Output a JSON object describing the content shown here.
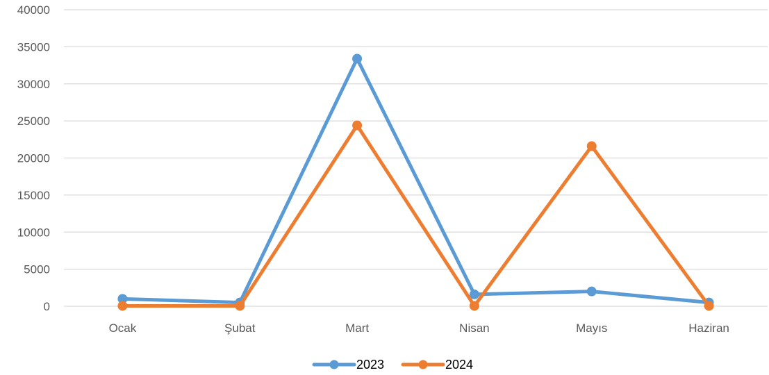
{
  "chart_data": {
    "type": "line",
    "title": "",
    "xlabel": "",
    "ylabel": "",
    "categories": [
      "Ocak",
      "Şubat",
      "Mart",
      "Nisan",
      "Mayıs",
      "Haziran"
    ],
    "ylim": [
      0,
      40000
    ],
    "yticks": [
      0,
      5000,
      10000,
      15000,
      20000,
      25000,
      30000,
      35000,
      40000
    ],
    "grid": true,
    "legend_position": "bottom",
    "series": [
      {
        "name": "2023",
        "color": "#5B9BD5",
        "values": [
          1000,
          500,
          33400,
          1600,
          2000,
          500
        ]
      },
      {
        "name": "2024",
        "color": "#ED7D31",
        "values": [
          50,
          50,
          24400,
          50,
          21600,
          50
        ]
      }
    ]
  }
}
